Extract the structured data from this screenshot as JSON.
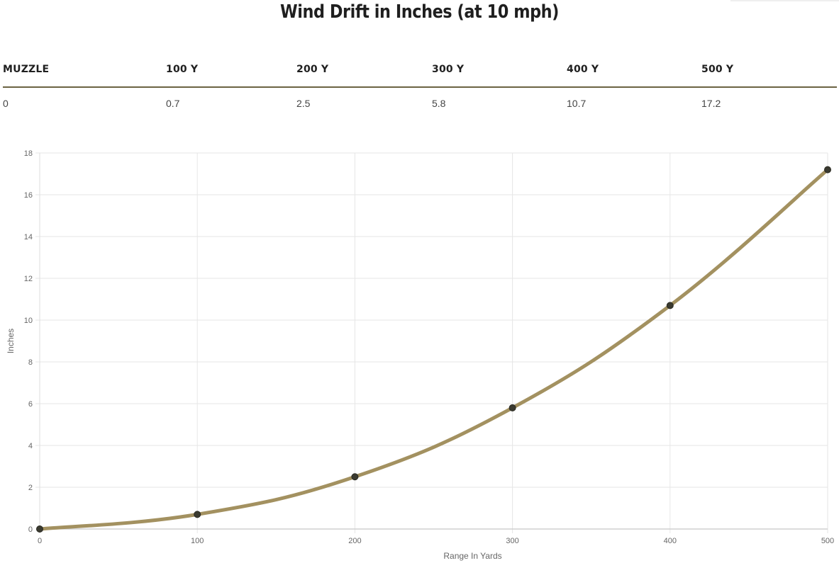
{
  "title": "Wind Drift in Inches (at 10 mph)",
  "table": {
    "headers": [
      "MUZZLE",
      "100 Y",
      "200 Y",
      "300 Y",
      "400 Y",
      "500 Y"
    ],
    "values": [
      "0",
      "0.7",
      "2.5",
      "5.8",
      "10.7",
      "17.2"
    ]
  },
  "colors": {
    "line": "#a39160",
    "point": "#3a3a30",
    "table_rule": "#6b6342",
    "grid": "#e6e6e6"
  },
  "chart_data": {
    "type": "line",
    "title": "",
    "xlabel": "Range In Yards",
    "ylabel": "Inches",
    "x": [
      0,
      100,
      200,
      300,
      400,
      500
    ],
    "series": [
      {
        "values": [
          0,
          0.7,
          2.5,
          5.8,
          10.7,
          17.2
        ]
      }
    ],
    "xlim": [
      0,
      500
    ],
    "ylim": [
      0,
      18
    ],
    "xticks": [
      0,
      100,
      200,
      300,
      400,
      500
    ],
    "yticks": [
      0,
      2,
      4,
      6,
      8,
      10,
      12,
      14,
      16,
      18
    ],
    "grid": true,
    "legend": "none"
  }
}
